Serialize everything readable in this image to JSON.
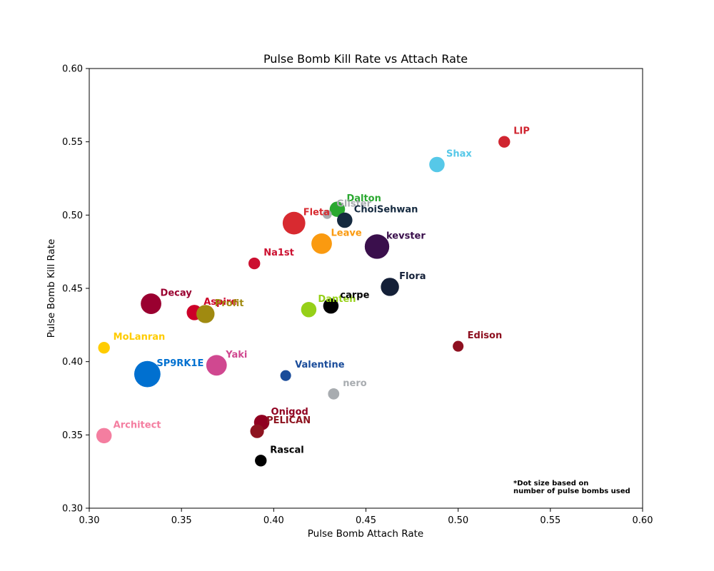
{
  "chart_data": {
    "type": "scatter",
    "title": "Pulse Bomb Kill Rate vs Attach Rate",
    "xlabel": "Pulse Bomb Attach Rate",
    "ylabel": "Pulse Bomb Kill Rate",
    "xlim": [
      0.3,
      0.6
    ],
    "ylim": [
      0.3,
      0.6
    ],
    "xticks": [
      "0.30",
      "0.35",
      "0.40",
      "0.45",
      "0.50",
      "0.55",
      "0.60"
    ],
    "yticks": [
      "0.30",
      "0.35",
      "0.40",
      "0.45",
      "0.50",
      "0.55",
      "0.60"
    ],
    "grid": false,
    "legend": "none",
    "note": [
      "*Dot size based on",
      "number of pulse bombs used"
    ],
    "points": [
      {
        "name": "LIP",
        "x": 0.525,
        "y": 0.55,
        "size": 1,
        "color": "#d02530"
      },
      {
        "name": "Shax",
        "x": 0.4885,
        "y": 0.5345,
        "size": 2,
        "color": "#56c8e8"
      },
      {
        "name": "Dalton",
        "x": 0.4345,
        "y": 0.504,
        "size": 2,
        "color": "#2aa830"
      },
      {
        "name": "Glister",
        "x": 0.429,
        "y": 0.5005,
        "size": 0.5,
        "color": "#a8acb0"
      },
      {
        "name": "ChoiSehwan",
        "x": 0.4385,
        "y": 0.4965,
        "size": 2,
        "color": "#152a40"
      },
      {
        "name": "Fleta",
        "x": 0.411,
        "y": 0.4945,
        "size": 5,
        "color": "#d82a30"
      },
      {
        "name": "Leave",
        "x": 0.426,
        "y": 0.4805,
        "size": 4,
        "color": "#fa9a10"
      },
      {
        "name": "kevster",
        "x": 0.456,
        "y": 0.4785,
        "size": 6,
        "color": "#3a0f4c"
      },
      {
        "name": "Na1st",
        "x": 0.3895,
        "y": 0.467,
        "size": 1,
        "color": "#cc1030"
      },
      {
        "name": "Flora",
        "x": 0.463,
        "y": 0.451,
        "size": 3,
        "color": "#142038"
      },
      {
        "name": "Decay",
        "x": 0.3335,
        "y": 0.4395,
        "size": 4,
        "color": "#9a0030"
      },
      {
        "name": "Aspire",
        "x": 0.357,
        "y": 0.4335,
        "size": 2,
        "color": "#cc0028"
      },
      {
        "name": "Profit",
        "x": 0.363,
        "y": 0.4325,
        "size": 3,
        "color": "#a08a10"
      },
      {
        "name": "Danteh",
        "x": 0.419,
        "y": 0.4355,
        "size": 2,
        "color": "#96d018"
      },
      {
        "name": "carpe",
        "x": 0.431,
        "y": 0.438,
        "size": 2,
        "color": "#000000"
      },
      {
        "name": "Edison",
        "x": 0.5,
        "y": 0.4105,
        "size": 0.8,
        "color": "#8e1020"
      },
      {
        "name": "MoLanran",
        "x": 0.308,
        "y": 0.4095,
        "size": 1,
        "color": "#ffcc00"
      },
      {
        "name": "Yaki",
        "x": 0.369,
        "y": 0.3975,
        "size": 4,
        "color": "#d04890"
      },
      {
        "name": "SP9RK1E",
        "x": 0.3315,
        "y": 0.3915,
        "size": 7,
        "color": "#0070d0"
      },
      {
        "name": "Valentine",
        "x": 0.4065,
        "y": 0.3905,
        "size": 0.8,
        "color": "#1a4c9a"
      },
      {
        "name": "nero",
        "x": 0.4325,
        "y": 0.378,
        "size": 0.9,
        "color": "#a8acb0"
      },
      {
        "name": "Onigod",
        "x": 0.3935,
        "y": 0.3585,
        "size": 2,
        "color": "#900020"
      },
      {
        "name": "PELICAN",
        "x": 0.391,
        "y": 0.3525,
        "size": 1.5,
        "color": "#8e1420"
      },
      {
        "name": "Architect",
        "x": 0.308,
        "y": 0.3495,
        "size": 2,
        "color": "#f47ea0"
      },
      {
        "name": "Rascal",
        "x": 0.393,
        "y": 0.3325,
        "size": 1,
        "color": "#000000"
      }
    ]
  }
}
